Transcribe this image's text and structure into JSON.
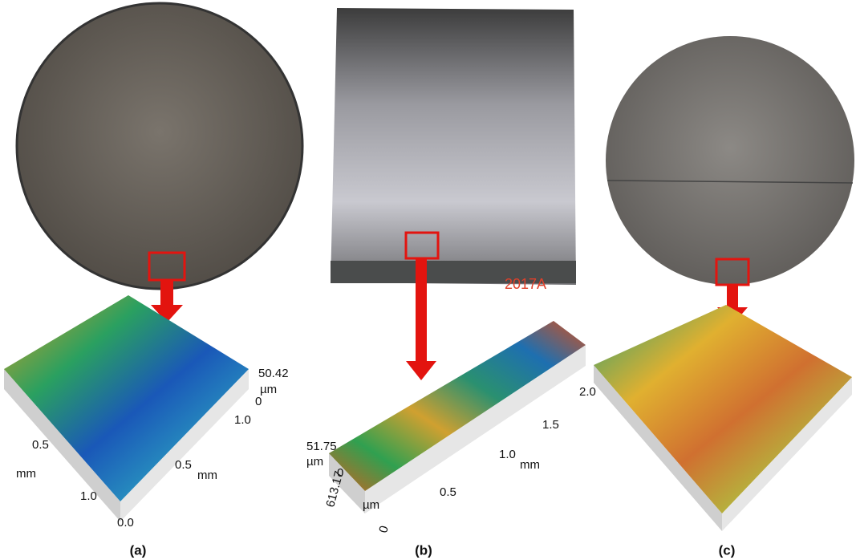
{
  "panels": [
    {
      "label": "(a)",
      "surface_labels": [
        "50.42",
        "µm",
        "0",
        "1.0",
        "0.5",
        "mm",
        "0.5",
        "mm",
        "1.0",
        "0.0"
      ]
    },
    {
      "label": "(b)",
      "photo_text": "2017A",
      "surface_labels": [
        "51.75",
        "µm",
        "0",
        "613.17",
        "µm",
        "0",
        "0.5",
        "1.0",
        "mm",
        "1.5",
        "2.0"
      ]
    },
    {
      "label": "(c)"
    }
  ]
}
